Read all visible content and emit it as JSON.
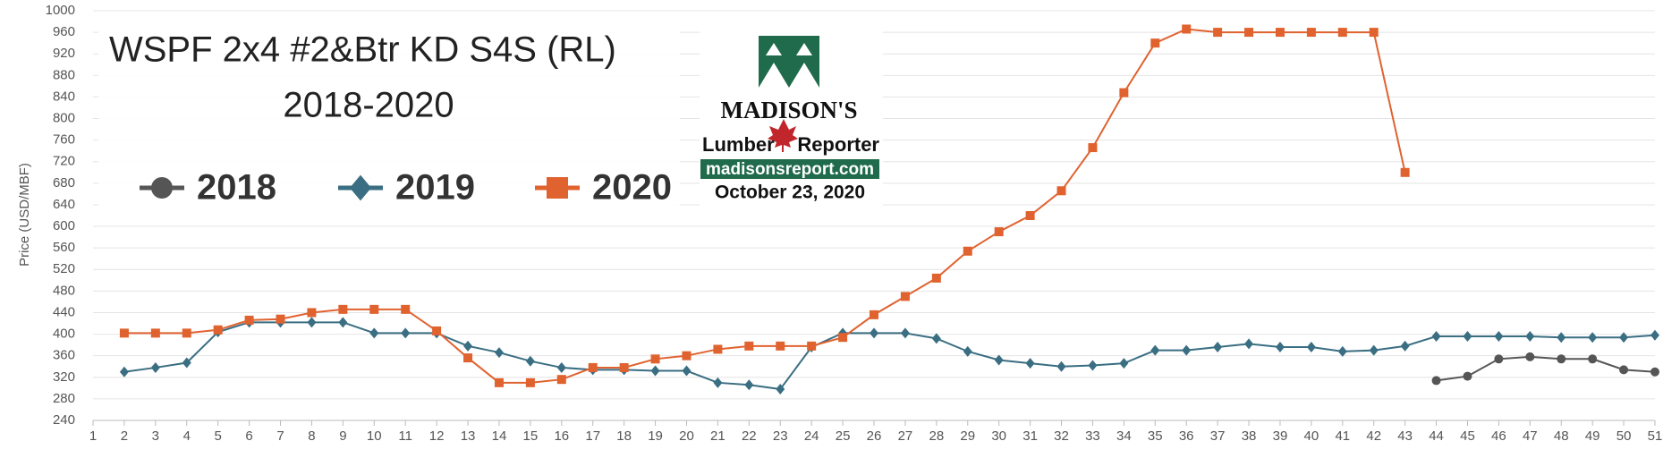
{
  "chart_data": {
    "type": "line",
    "title": "WSPF 2x4 #2&Btr KD S4S (RL)",
    "subtitle": "2018-2020",
    "y_label": "Price (USD/MBF)",
    "logo": {
      "name": "MADISON'S",
      "line1": "Lumber",
      "line2": "Reporter",
      "url": "madisonsreport.com",
      "date": "October 23, 2020"
    },
    "x": [
      1,
      2,
      3,
      4,
      5,
      6,
      7,
      8,
      9,
      10,
      11,
      12,
      13,
      14,
      15,
      16,
      17,
      18,
      19,
      20,
      21,
      22,
      23,
      24,
      25,
      26,
      27,
      28,
      29,
      30,
      31,
      32,
      33,
      34,
      35,
      36,
      37,
      38,
      39,
      40,
      41,
      42,
      43,
      44,
      45,
      46,
      47,
      48,
      49,
      50,
      51
    ],
    "xlim": [
      1,
      51
    ],
    "ylim": [
      240,
      1000
    ],
    "yticks": [
      240,
      280,
      320,
      360,
      400,
      440,
      480,
      520,
      560,
      600,
      640,
      680,
      720,
      760,
      800,
      840,
      880,
      920,
      960,
      1000
    ],
    "grid": true,
    "series": [
      {
        "name": "2018",
        "color": "#555555",
        "marker": "circle",
        "values": [
          null,
          null,
          null,
          null,
          null,
          null,
          null,
          null,
          null,
          null,
          null,
          null,
          null,
          null,
          null,
          null,
          null,
          null,
          null,
          null,
          null,
          null,
          null,
          null,
          null,
          null,
          null,
          null,
          null,
          null,
          null,
          null,
          null,
          null,
          null,
          null,
          null,
          null,
          null,
          null,
          null,
          null,
          null,
          314,
          322,
          354,
          358,
          354,
          354,
          334,
          330
        ]
      },
      {
        "name": "2019",
        "color": "#3a6e82",
        "marker": "diamond",
        "values": [
          null,
          330,
          338,
          347,
          404,
          422,
          422,
          422,
          422,
          402,
          402,
          402,
          378,
          366,
          350,
          338,
          334,
          334,
          332,
          332,
          310,
          306,
          298,
          376,
          402,
          402,
          402,
          392,
          368,
          352,
          346,
          340,
          342,
          346,
          370,
          370,
          376,
          382,
          376,
          376,
          368,
          370,
          378,
          396,
          396,
          396,
          396,
          394,
          394,
          394,
          398
        ]
      },
      {
        "name": "2020",
        "color": "#e0622f",
        "marker": "square",
        "values": [
          null,
          402,
          402,
          402,
          408,
          426,
          428,
          440,
          446,
          446,
          446,
          406,
          356,
          310,
          310,
          316,
          338,
          338,
          354,
          360,
          372,
          378,
          378,
          378,
          394,
          436,
          470,
          504,
          554,
          590,
          620,
          666,
          746,
          848,
          940,
          966,
          960,
          960,
          960,
          960,
          960,
          960,
          700,
          null,
          null,
          null,
          null,
          null,
          null,
          null,
          null
        ]
      }
    ]
  }
}
